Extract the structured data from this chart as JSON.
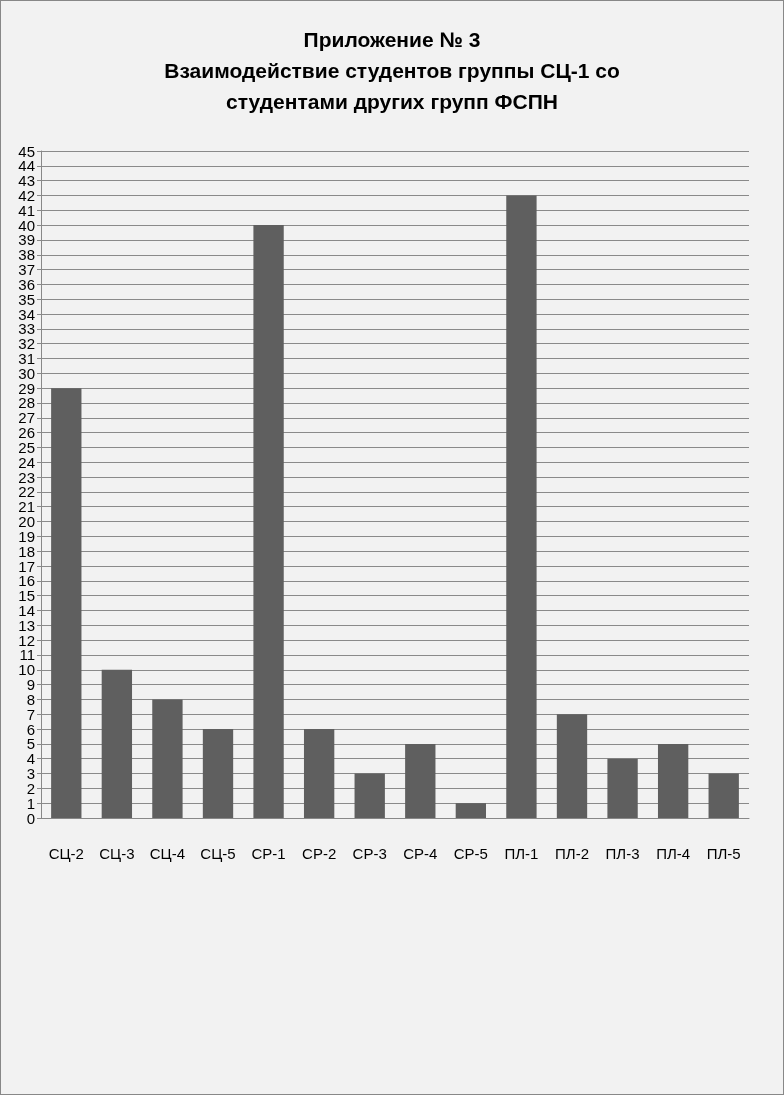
{
  "chart_data": {
    "type": "bar",
    "title": "Приложение № 3\nВзаимодействие студентов группы СЦ-1 со\nстудентами других групп ФСПН",
    "categories": [
      "СЦ-2",
      "СЦ-3",
      "СЦ-4",
      "СЦ-5",
      "СР-1",
      "СР-2",
      "СР-3",
      "СР-4",
      "СР-5",
      "ПЛ-1",
      "ПЛ-2",
      "ПЛ-3",
      "ПЛ-4",
      "ПЛ-5"
    ],
    "values": [
      29,
      10,
      8,
      6,
      40,
      6,
      3,
      5,
      1,
      42,
      7,
      4,
      5,
      3
    ],
    "color": "#5f5f5f",
    "ylim": [
      0,
      45
    ],
    "yticks": [
      0,
      1,
      2,
      3,
      4,
      5,
      6,
      7,
      8,
      9,
      10,
      11,
      12,
      13,
      14,
      15,
      16,
      17,
      18,
      19,
      20,
      21,
      22,
      23,
      24,
      25,
      26,
      27,
      28,
      29,
      30,
      31,
      32,
      33,
      34,
      35,
      36,
      37,
      38,
      39,
      40,
      41,
      42,
      43,
      44,
      45
    ],
    "grid": "y"
  }
}
